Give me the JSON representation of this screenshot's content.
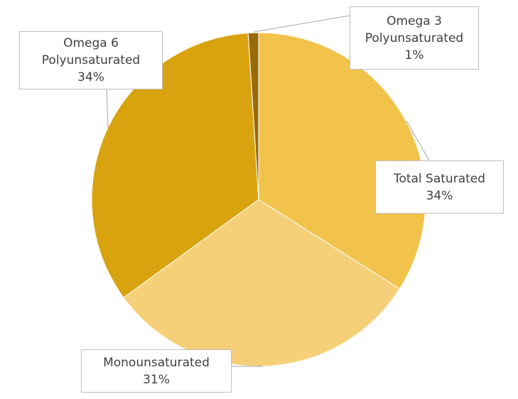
{
  "chart_data": {
    "type": "pie",
    "title": "",
    "start_angle_deg": 0,
    "direction": "clockwise",
    "slices": [
      {
        "name_lines": [
          "Total Saturated"
        ],
        "value": 34,
        "label": "34%",
        "color": "#F2C34B"
      },
      {
        "name_lines": [
          "Monounsaturated"
        ],
        "value": 31,
        "label": "31%",
        "color": "#F6D078"
      },
      {
        "name_lines": [
          "Omega 6",
          "Polyunsaturated"
        ],
        "value": 34,
        "label": "34%",
        "color": "#D9A30F"
      },
      {
        "name_lines": [
          "Omega 3",
          "Polyunsaturated"
        ],
        "value": 1,
        "label": "1%",
        "color": "#9A6A0A"
      }
    ]
  }
}
